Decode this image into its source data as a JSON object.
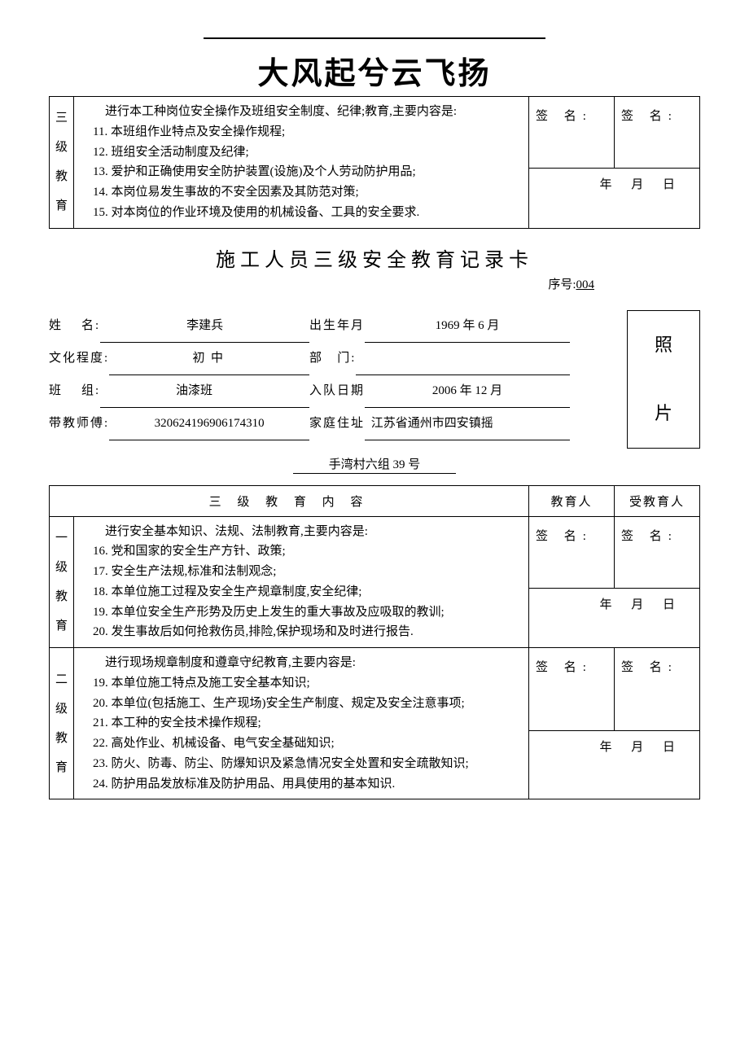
{
  "header": {
    "big_title": "大风起兮云飞扬"
  },
  "top_table": {
    "level_label": "三级教育",
    "content_lead": "进行本工种岗位安全操作及班组安全制度、纪律;教育,主要内容是:",
    "items": [
      "11. 本班组作业特点及安全操作规程;",
      "12. 班组安全活动制度及纪律;",
      "13. 爱护和正确使用安全防护装置(设施)及个人劳动防护用品;",
      "14. 本岗位易发生事故的不安全因素及其防范对策;",
      "15. 对本岗位的作业环境及使用的机械设备、工具的安全要求."
    ],
    "sign_label": "签   名:",
    "date_text": "年   月    日"
  },
  "form": {
    "title": "施工人员三级安全教育记录卡",
    "serial_label": "序号:",
    "serial_value": "004",
    "name_label": "姓    名:",
    "name_value": "李建兵",
    "dob_label": "出生年月",
    "dob_value": "     1969 年 6 月     ",
    "edu_label": "文化程度:",
    "edu_value": "       初  中        ",
    "dept_label": "部   门:",
    "dept_value": " ",
    "team_label": "班    组:",
    "team_value": "油漆班       ",
    "join_label": "入队日期",
    "join_value": "     2006 年 12 月     ",
    "mentor_label": "带教师傅:",
    "mentor_value": "320624196906174310",
    "addr_label": "家庭住址",
    "addr_value": " 江苏省通州市四安镇摇",
    "addr2_value": "手湾村六组 39 号",
    "photo_c1": "照",
    "photo_c2": "片"
  },
  "table2": {
    "header_content": "三  级 教 育 内 容",
    "header_edu": "教育人",
    "header_stu": "受教育人",
    "sign_label": "签   名:",
    "date_text": "年   月    日",
    "lv1": {
      "label": "一级教育",
      "lead": "进行安全基本知识、法规、法制教育,主要内容是:",
      "items": [
        "16. 党和国家的安全生产方针、政策;",
        "17. 安全生产法规,标准和法制观念;",
        "18. 本单位施工过程及安全生产规章制度,安全纪律;",
        "19. 本单位安全生产形势及历史上发生的重大事故及应吸取的教训;",
        "20. 发生事故后如何抢救伤员,排险,保护现场和及时进行报告."
      ]
    },
    "lv2": {
      "label": "二级教育",
      "lead": "进行现场规章制度和遵章守纪教育,主要内容是:",
      "items": [
        "19. 本单位施工特点及施工安全基本知识;",
        "20. 本单位(包括施工、生产现场)安全生产制度、规定及安全注意事项;",
        "21. 本工种的安全技术操作规程;",
        "22. 高处作业、机械设备、电气安全基础知识;",
        "23. 防火、防毒、防尘、防爆知识及紧急情况安全处置和安全疏散知识;",
        "24. 防护用品发放标准及防护用品、用具使用的基本知识."
      ]
    }
  }
}
